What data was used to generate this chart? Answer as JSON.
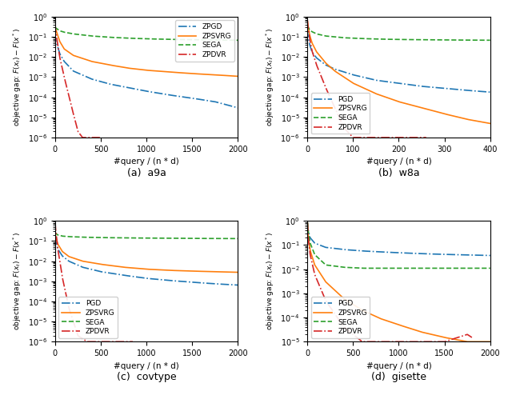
{
  "subplots": [
    {
      "title": "(a)  a9a",
      "xlabel": "#query / (n * d)",
      "ylabel": "objective gap: $F(x_t) - F(x^*)$",
      "xlim": [
        0,
        2000
      ],
      "ylim": [
        1e-06,
        1.0
      ],
      "legend_loc": "upper right",
      "legend_names": [
        "ZPGD",
        "ZPSVRG",
        "SEGA",
        "ZPDVR"
      ],
      "curves": [
        {
          "name": "ZPGD",
          "color": "#1f77b4",
          "ls": "dashdot",
          "lw": 1.2,
          "pts_x": [
            0,
            5,
            50,
            100,
            200,
            400,
            600,
            800,
            1000,
            1250,
            1500,
            1750,
            2000
          ],
          "pts_y": [
            0.15,
            0.07,
            0.015,
            0.006,
            0.002,
            0.0008,
            0.00045,
            0.0003,
            0.0002,
            0.00013,
            9e-05,
            6e-05,
            3e-05
          ]
        },
        {
          "name": "ZPSVRG",
          "color": "#ff7f0e",
          "ls": "solid",
          "lw": 1.2,
          "pts_x": [
            0,
            5,
            50,
            100,
            200,
            400,
            600,
            800,
            1000,
            1250,
            1500,
            1750,
            2000
          ],
          "pts_y": [
            0.45,
            0.25,
            0.06,
            0.025,
            0.012,
            0.006,
            0.004,
            0.0028,
            0.0022,
            0.0018,
            0.0015,
            0.0013,
            0.0011
          ]
        },
        {
          "name": "SEGA",
          "color": "#2ca02c",
          "ls": "dashed",
          "lw": 1.2,
          "pts_x": [
            0,
            5,
            50,
            100,
            200,
            400,
            600,
            800,
            1000,
            1250,
            1500,
            1750,
            2000
          ],
          "pts_y": [
            0.32,
            0.28,
            0.2,
            0.17,
            0.14,
            0.11,
            0.095,
            0.086,
            0.08,
            0.075,
            0.072,
            0.07,
            0.068
          ]
        },
        {
          "name": "ZPDVR",
          "color": "#d62728",
          "ls": "dashdot",
          "lw": 1.2,
          "pts_x": [
            0,
            5,
            50,
            100,
            150,
            200,
            250,
            300,
            350,
            400,
            450,
            490
          ],
          "pts_y": [
            0.45,
            0.2,
            0.01,
            0.001,
            0.00012,
            1.5e-05,
            2e-06,
            3e-07,
            4e-08,
            5e-09,
            6e-10,
            1e-10
          ]
        }
      ]
    },
    {
      "title": "(b)  w8a",
      "xlabel": "#query / (n * d)",
      "ylabel": "objective gap: $F(x_t) - F(x^*)$",
      "xlim": [
        0,
        400
      ],
      "ylim": [
        1e-06,
        1.0
      ],
      "legend_loc": "lower left",
      "legend_names": [
        "PGD",
        "ZPSVRG",
        "SEGA",
        "ZPDVR"
      ],
      "curves": [
        {
          "name": "PGD",
          "color": "#1f77b4",
          "ls": "dashdot",
          "lw": 1.2,
          "pts_x": [
            0,
            1,
            5,
            10,
            20,
            40,
            60,
            80,
            100,
            150,
            200,
            250,
            300,
            350,
            400
          ],
          "pts_y": [
            0.25,
            0.12,
            0.04,
            0.018,
            0.009,
            0.004,
            0.0025,
            0.0018,
            0.0013,
            0.0007,
            0.0005,
            0.00035,
            0.00028,
            0.00022,
            0.00018
          ]
        },
        {
          "name": "ZPSVRG",
          "color": "#ff7f0e",
          "ls": "solid",
          "lw": 1.2,
          "pts_x": [
            0,
            1,
            5,
            10,
            20,
            40,
            60,
            80,
            100,
            150,
            200,
            250,
            300,
            350,
            400
          ],
          "pts_y": [
            0.65,
            0.4,
            0.12,
            0.05,
            0.018,
            0.005,
            0.002,
            0.001,
            0.0005,
            0.00015,
            6e-05,
            3e-05,
            1.5e-05,
            8e-06,
            5e-06
          ]
        },
        {
          "name": "SEGA",
          "color": "#2ca02c",
          "ls": "dashed",
          "lw": 1.2,
          "pts_x": [
            0,
            1,
            5,
            10,
            20,
            40,
            80,
            120,
            160,
            200,
            250,
            300,
            350,
            400
          ],
          "pts_y": [
            0.38,
            0.32,
            0.22,
            0.18,
            0.14,
            0.11,
            0.09,
            0.082,
            0.077,
            0.074,
            0.072,
            0.07,
            0.069,
            0.068
          ]
        },
        {
          "name": "ZPDVR",
          "color": "#d62728",
          "ls": "dashdot",
          "lw": 1.2,
          "pts_x": [
            0,
            1,
            5,
            10,
            20,
            40,
            60,
            80,
            100,
            130,
            160,
            200,
            230,
            260
          ],
          "pts_y": [
            0.65,
            0.35,
            0.08,
            0.02,
            0.004,
            0.0003,
            3e-05,
            3e-06,
            4e-07,
            2e-08,
            2e-09,
            2e-10,
            2e-11,
            1e-12
          ]
        }
      ]
    },
    {
      "title": "(c)  covtype",
      "xlabel": "#query / (n * d)",
      "ylabel": "objective gap: $F(x_t) - F(x^*)$",
      "xlim": [
        0,
        2000
      ],
      "ylim": [
        1e-06,
        1.0
      ],
      "legend_loc": "lower left",
      "legend_names": [
        "PGD",
        "ZPSVRG",
        "SEGA",
        "ZPDVR"
      ],
      "curves": [
        {
          "name": "PGD",
          "color": "#1f77b4",
          "ls": "dashdot",
          "lw": 1.2,
          "pts_x": [
            0,
            5,
            30,
            80,
            150,
            300,
            500,
            750,
            1000,
            1250,
            1500,
            1750,
            2000
          ],
          "pts_y": [
            0.17,
            0.1,
            0.04,
            0.018,
            0.01,
            0.005,
            0.003,
            0.002,
            0.0014,
            0.0011,
            0.0009,
            0.00075,
            0.00065
          ]
        },
        {
          "name": "ZPSVRG",
          "color": "#ff7f0e",
          "ls": "solid",
          "lw": 1.2,
          "pts_x": [
            0,
            5,
            30,
            80,
            150,
            300,
            500,
            750,
            1000,
            1250,
            1500,
            1750,
            2000
          ],
          "pts_y": [
            0.3,
            0.18,
            0.07,
            0.03,
            0.017,
            0.01,
            0.007,
            0.005,
            0.004,
            0.0035,
            0.0032,
            0.003,
            0.0028
          ]
        },
        {
          "name": "SEGA",
          "color": "#2ca02c",
          "ls": "dashed",
          "lw": 1.2,
          "pts_x": [
            0,
            5,
            30,
            80,
            150,
            300,
            500,
            750,
            1000,
            1250,
            1500,
            1750,
            2000
          ],
          "pts_y": [
            0.28,
            0.24,
            0.2,
            0.175,
            0.165,
            0.155,
            0.148,
            0.143,
            0.14,
            0.138,
            0.135,
            0.133,
            0.132
          ]
        },
        {
          "name": "ZPDVR",
          "color": "#d62728",
          "ls": "dashdot",
          "lw": 1.2,
          "pts_x": [
            0,
            5,
            30,
            80,
            150,
            250,
            350,
            450,
            550,
            650,
            750,
            820,
            850
          ],
          "pts_y": [
            0.85,
            0.4,
            0.04,
            0.0015,
            5e-05,
            2e-06,
            8e-08,
            3e-09,
            1e-10,
            3e-12,
            8e-14,
            2e-15,
            1e-15
          ]
        }
      ]
    },
    {
      "title": "(d)  gisette",
      "xlabel": "#query / (n * d)",
      "ylabel": "objective gap: $F(x_t) - F(x^*)$",
      "xlim": [
        0,
        2000
      ],
      "ylim": [
        1e-05,
        1.0
      ],
      "legend_loc": "lower left",
      "legend_names": [
        "PGD",
        "ZPSVRG",
        "SEGA",
        "ZPDVR"
      ],
      "curves": [
        {
          "name": "PGD",
          "color": "#1f77b4",
          "ls": "dashdot",
          "lw": 1.2,
          "pts_x": [
            0,
            2,
            10,
            30,
            80,
            200,
            400,
            600,
            800,
            1000,
            1250,
            1500,
            1750,
            2000
          ],
          "pts_y": [
            0.85,
            0.65,
            0.38,
            0.2,
            0.12,
            0.08,
            0.065,
            0.057,
            0.052,
            0.048,
            0.044,
            0.041,
            0.039,
            0.037
          ]
        },
        {
          "name": "ZPSVRG",
          "color": "#ff7f0e",
          "ls": "solid",
          "lw": 1.2,
          "pts_x": [
            0,
            2,
            10,
            30,
            80,
            200,
            400,
            600,
            800,
            1000,
            1250,
            1500,
            1750,
            2000
          ],
          "pts_y": [
            0.85,
            0.55,
            0.2,
            0.06,
            0.015,
            0.003,
            0.0006,
            0.0002,
            9e-05,
            5e-05,
            2.5e-05,
            1.5e-05,
            1e-05,
            8e-06
          ]
        },
        {
          "name": "SEGA",
          "color": "#2ca02c",
          "ls": "dashed",
          "lw": 1.2,
          "pts_x": [
            0,
            2,
            10,
            30,
            80,
            200,
            400,
            600,
            800,
            1000,
            1250,
            1500,
            1750,
            2000
          ],
          "pts_y": [
            0.9,
            0.65,
            0.35,
            0.12,
            0.04,
            0.015,
            0.012,
            0.011,
            0.011,
            0.011,
            0.011,
            0.011,
            0.011,
            0.011
          ]
        },
        {
          "name": "ZPDVR",
          "color": "#d62728",
          "ls": "dashdot",
          "lw": 1.2,
          "pts_x": [
            0,
            2,
            10,
            30,
            80,
            200,
            400,
            600,
            800,
            1000,
            1250,
            1500,
            1750,
            1800
          ],
          "pts_y": [
            0.85,
            0.55,
            0.18,
            0.04,
            0.006,
            0.0005,
            4e-05,
            5e-06,
            8e-07,
            1.5e-07,
            2e-08,
            3e-09,
            2e-05,
            1.5e-05
          ]
        }
      ]
    }
  ],
  "figure_bg": "#ffffff",
  "axes_bg": "#ffffff"
}
